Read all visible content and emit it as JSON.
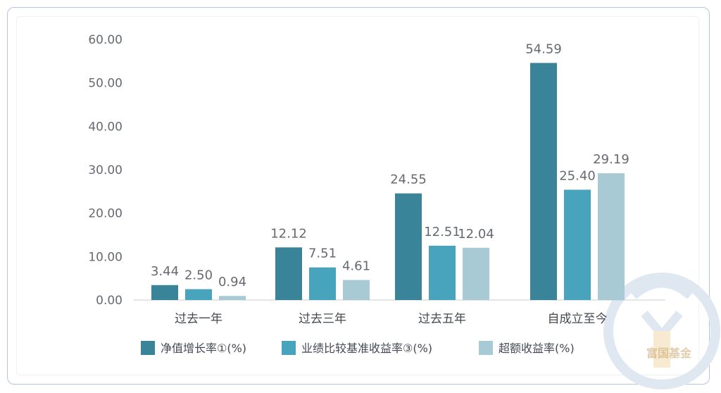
{
  "chart_data": {
    "type": "bar",
    "categories": [
      "过去一年",
      "过去三年",
      "过去五年",
      "自成立至今"
    ],
    "series": [
      {
        "name": "净值增长率①(%)",
        "values": [
          3.44,
          12.12,
          24.55,
          54.59
        ],
        "color": "#3a8499"
      },
      {
        "name": "业绩比较基准收益率③(%)",
        "values": [
          2.5,
          7.51,
          12.51,
          25.4
        ],
        "color": "#48a4bd"
      },
      {
        "name": "超额收益率(%)",
        "values": [
          0.94,
          4.61,
          12.04,
          29.19
        ],
        "color": "#a8cad5"
      }
    ],
    "y_ticks": [
      "0.00",
      "10.00",
      "20.00",
      "30.00",
      "40.00",
      "50.00",
      "60.00"
    ],
    "ylim": [
      0,
      60
    ],
    "grid": false,
    "legend_position": "bottom"
  },
  "watermark": {
    "text": "富国基金",
    "color": "#c9a56a"
  }
}
